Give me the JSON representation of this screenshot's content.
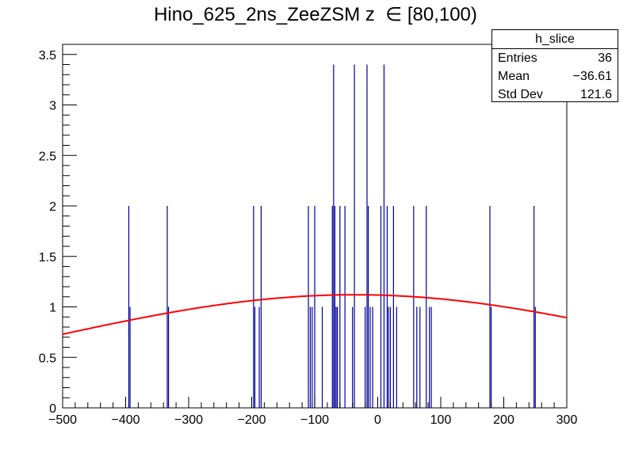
{
  "chart_data": {
    "type": "histogram",
    "title": "Hino_625_2ns_ZeeZSM z  ∈ [80,100)",
    "xlim": [
      -500,
      300
    ],
    "ylim": [
      0,
      3.6
    ],
    "x_ticks": [
      -500,
      -400,
      -300,
      -200,
      -100,
      0,
      100,
      200,
      300
    ],
    "x_tick_labels": [
      "−500",
      "−400",
      "−300",
      "−200",
      "−100",
      "0",
      "100",
      "200",
      "300"
    ],
    "y_ticks": [
      0,
      0.5,
      1,
      1.5,
      2,
      2.5,
      3,
      3.5
    ],
    "y_tick_labels": [
      "0",
      "0.5",
      "1",
      "1.5",
      "2",
      "2.5",
      "3",
      "3.5"
    ],
    "bars_x": [
      -395,
      -393,
      -334,
      -332,
      -197,
      -195,
      -188,
      -185,
      -110,
      -107,
      -104,
      -100,
      -88,
      -72,
      -70,
      -68,
      -66,
      -64,
      -60,
      -52,
      -40,
      -37,
      -20,
      -17,
      -15,
      -12,
      -8,
      5,
      10,
      15,
      17,
      20,
      25,
      30,
      57,
      62,
      67,
      77,
      82,
      85,
      178,
      180,
      248,
      250
    ],
    "bars_y": [
      2,
      1,
      2,
      1,
      2,
      1,
      1,
      2,
      2,
      1,
      1,
      2,
      1,
      2,
      3.4,
      2,
      1,
      1,
      2,
      2,
      1,
      3.4,
      1,
      3.4,
      2,
      1,
      1,
      2,
      3.4,
      2,
      1,
      1,
      2,
      1,
      2,
      1,
      1,
      2,
      1,
      1,
      2,
      1,
      2,
      1
    ],
    "fit_function": {
      "type": "gaussian",
      "amplitude": 1.12,
      "mean": -36.61,
      "sigma": 500,
      "color": "#ff0000"
    },
    "bar_color": "#000099",
    "stats": {
      "name": "h_slice",
      "entries_label": "Entries",
      "entries": "36",
      "mean_label": "Mean",
      "mean": "−36.61",
      "std_label": "Std Dev",
      "std": "121.6"
    }
  }
}
